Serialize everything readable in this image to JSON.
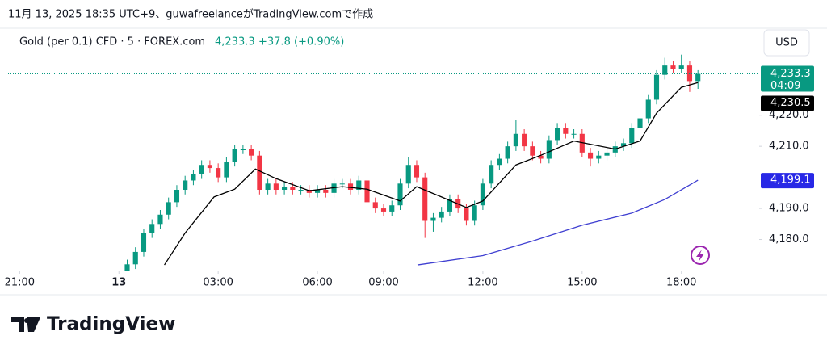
{
  "header": {
    "caption": "11月 13, 2025 18:35 UTC+9、guwafreelanceがTradingView.comで作成"
  },
  "footer": {
    "logo_text": "TradingView"
  },
  "chart_data": {
    "type": "candlestick",
    "title": "Gold (per 0.1) CFD · 5 · FOREX.com",
    "last_value": "4,233.3",
    "change": "+37.8 (+0.90%)",
    "currency": "USD",
    "countdown": "04:09",
    "up_color": "#089981",
    "down_color": "#f23645",
    "xlim": [
      -13.4,
      77.4
    ],
    "xticks": [
      {
        "value": -12,
        "label": "21:00"
      },
      {
        "value": 0,
        "label": "13"
      },
      {
        "value": 12,
        "label": "03:00"
      },
      {
        "value": 24,
        "label": "06:00"
      },
      {
        "value": 32,
        "label": "09:00"
      },
      {
        "value": 44,
        "label": "12:00"
      },
      {
        "value": 56,
        "label": "15:00"
      },
      {
        "value": 68,
        "label": "18:00"
      }
    ],
    "ylim": [
      4170,
      4248
    ],
    "yticks": [
      {
        "value": 4180,
        "label": "4,180.0"
      },
      {
        "value": 4190,
        "label": "4,190.0"
      },
      {
        "value": 4210,
        "label": "4,210.0"
      },
      {
        "value": 4220,
        "label": "4,220.0"
      }
    ],
    "x": [
      1,
      2,
      3,
      4,
      5,
      6,
      7,
      8,
      9,
      10,
      11,
      12,
      13,
      14,
      15,
      16,
      17,
      18,
      19,
      20,
      21,
      22,
      23,
      24,
      25,
      26,
      27,
      28,
      29,
      30,
      31,
      32,
      33,
      34,
      35,
      36,
      37,
      38,
      39,
      40,
      41,
      42,
      43,
      44,
      45,
      46,
      47,
      48,
      49,
      50,
      51,
      52,
      53,
      54,
      55,
      56,
      57,
      58,
      59,
      60,
      61,
      62,
      63,
      64,
      65,
      66,
      67,
      68,
      69,
      70
    ],
    "open": [
      4170,
      4172,
      4176,
      4182,
      4185,
      4188,
      4192,
      4196,
      4199,
      4201,
      4204,
      4203,
      4200,
      4205,
      4209,
      4209,
      4207,
      4196,
      4198,
      4196,
      4197,
      4196,
      4196,
      4195,
      4196,
      4195,
      4198,
      4198,
      4196,
      4199,
      4192,
      4190,
      4189,
      4191,
      4198,
      4204,
      4200,
      4186,
      4187,
      4189,
      4193,
      4190,
      4186,
      4191,
      4198,
      4204,
      4206,
      4210,
      4214,
      4210,
      4207,
      4206,
      4212,
      4216,
      4214,
      4214,
      4208,
      4206,
      4207,
      4208,
      4210,
      4211,
      4216,
      4219,
      4225,
      4233,
      4236,
      4235,
      4236,
      4231
    ],
    "high": [
      4173.5,
      4177.5,
      4183.5,
      4186.5,
      4189.5,
      4193.5,
      4197.5,
      4200.5,
      4202.5,
      4205.5,
      4205.5,
      4204.5,
      4206.5,
      4210.5,
      4210.5,
      4210.5,
      4208.5,
      4199.5,
      4199.5,
      4198.5,
      4198.5,
      4197.5,
      4197.5,
      4197.5,
      4197.5,
      4199.5,
      4199.5,
      4199.5,
      4200.5,
      4200.5,
      4193.5,
      4191.5,
      4192.5,
      4199.5,
      4206.5,
      4205.5,
      4201.5,
      4188.5,
      4190.5,
      4194.5,
      4194.5,
      4191.5,
      4192.5,
      4199.5,
      4205.5,
      4207.5,
      4211.5,
      4218.5,
      4215.5,
      4211.5,
      4208.5,
      4213.5,
      4217.5,
      4217.5,
      4215.5,
      4215.5,
      4209.5,
      4208.5,
      4209.5,
      4211.5,
      4212.5,
      4217.5,
      4220.5,
      4226.5,
      4234.5,
      4238.5,
      4237.5,
      4239.5,
      4237.5,
      4234.5
    ],
    "low": [
      4168.5,
      4170.5,
      4174.5,
      4180.5,
      4183.5,
      4186.5,
      4190.5,
      4194.5,
      4197.5,
      4199.5,
      4201.5,
      4198.5,
      4198.5,
      4203.5,
      4207.5,
      4205.5,
      4194.5,
      4194.5,
      4194.5,
      4194.5,
      4194.5,
      4194.5,
      4193.5,
      4193.5,
      4193.5,
      4193.5,
      4196.5,
      4194.5,
      4194.5,
      4190.5,
      4188.5,
      4187.5,
      4187.5,
      4189.5,
      4196.5,
      4198.5,
      4180.5,
      4182.5,
      4185.5,
      4187.5,
      4188.5,
      4184.5,
      4184.5,
      4189.5,
      4196.5,
      4202.5,
      4204.5,
      4208.5,
      4208.5,
      4205.5,
      4204.5,
      4204.5,
      4210.5,
      4212.5,
      4212.5,
      4206.5,
      4203.5,
      4204.5,
      4205.5,
      4206.5,
      4208.5,
      4209.5,
      4214.5,
      4217.5,
      4223.5,
      4231.5,
      4233.5,
      4233.5,
      4227.5,
      4228.5
    ],
    "close": [
      4172,
      4176,
      4182,
      4185,
      4188,
      4192,
      4196,
      4199,
      4201,
      4204,
      4203,
      4200,
      4205,
      4209,
      4209,
      4207,
      4196,
      4198,
      4196,
      4197,
      4196,
      4196,
      4195,
      4196,
      4195,
      4198,
      4198,
      4196,
      4199,
      4192,
      4190,
      4189,
      4191,
      4198,
      4204,
      4200,
      4186,
      4187,
      4189,
      4193,
      4190,
      4186,
      4191,
      4198,
      4204,
      4206,
      4210,
      4214,
      4210,
      4207,
      4206,
      4212,
      4216,
      4214,
      4214,
      4208,
      4206,
      4207,
      4208,
      4210,
      4211,
      4216,
      4219,
      4225,
      4233,
      4236,
      4235,
      4236,
      4231,
      4233.3
    ],
    "lines": [
      {
        "color": "#000000",
        "x": [
          5.5,
          8,
          11.5,
          14,
          16.5,
          19,
          23,
          27,
          30,
          34,
          36,
          39,
          42,
          44,
          48,
          51,
          55,
          60,
          63,
          65,
          68,
          70
        ],
        "values": [
          4171.8,
          4182.1,
          4193.7,
          4196.2,
          4202.7,
          4199.6,
          4195.7,
          4197.0,
          4196.2,
          4192.4,
          4197.0,
          4193.7,
          4190.3,
          4192.4,
          4204.0,
          4207.1,
          4211.7,
          4209.1,
          4211.7,
          4220.7,
          4229.0,
          4230.5
        ]
      },
      {
        "color": "#3f3fd1",
        "x": [
          36.1,
          44,
          50,
          56,
          62,
          66,
          70
        ],
        "values": [
          4171.8,
          4174.8,
          4179.5,
          4184.6,
          4188.5,
          4192.9,
          4199.1
        ]
      }
    ],
    "price_tags": [
      {
        "value": 4233.3,
        "label": "4,233.3",
        "color": "#089981"
      },
      {
        "value": 4230.5,
        "label": "4,230.5",
        "color": "#000000"
      },
      {
        "value": 4199.1,
        "label": "4,199.1",
        "color": "#2828e6"
      }
    ]
  }
}
